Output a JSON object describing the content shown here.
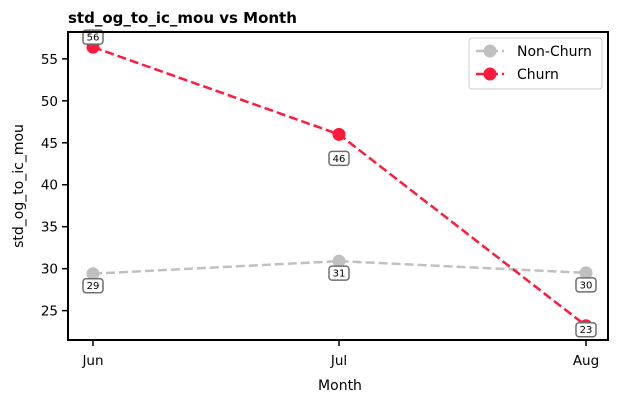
{
  "chart_data": {
    "type": "line",
    "title": "std_og_to_ic_mou vs Month",
    "xlabel": "Month",
    "ylabel": "std_og_to_ic_mou",
    "categories": [
      "Jun",
      "Jul",
      "Aug"
    ],
    "ylim": [
      21.5,
      58.2
    ],
    "yticks": [
      25,
      30,
      35,
      40,
      45,
      50,
      55
    ],
    "grid": false,
    "legend_position": "top-right",
    "series": [
      {
        "name": "Non-Churn",
        "values": [
          29.4,
          30.9,
          29.5
        ],
        "data_labels": [
          "29",
          "31",
          "30"
        ],
        "color": "#c0c0c0",
        "line_style": "dashed",
        "marker": "circle"
      },
      {
        "name": "Churn",
        "values": [
          56.4,
          46.0,
          23.2
        ],
        "data_labels": [
          "56",
          "46",
          "23"
        ],
        "color": "#ff1a3c",
        "line_style": "dashed",
        "marker": "circle"
      }
    ]
  }
}
